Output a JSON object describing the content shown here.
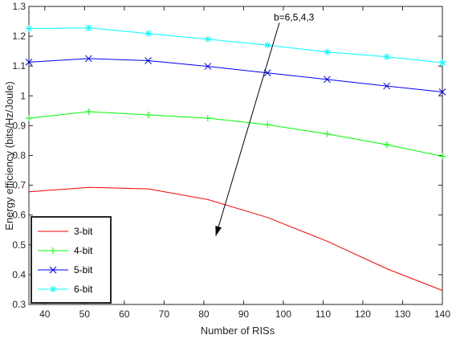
{
  "chart_data": {
    "type": "line",
    "title": "",
    "xlabel": "Number of RISs",
    "ylabel": "Energy efficiency (bits/Hz/Joule)",
    "xlim": [
      36,
      140
    ],
    "ylim": [
      0.3,
      1.3
    ],
    "xticks": [
      40,
      50,
      60,
      70,
      80,
      90,
      100,
      110,
      120,
      130,
      140
    ],
    "yticks": [
      0.3,
      0.4,
      0.5,
      0.6,
      0.7,
      0.8,
      0.9,
      1,
      1.1,
      1.2,
      1.3
    ],
    "grid": false,
    "legend_position": "bottom-left",
    "annotation": {
      "text": "b=6,5,4,3",
      "arrow_from": [
        99,
        1.245
      ],
      "arrow_to": [
        83,
        0.53
      ]
    },
    "series": [
      {
        "name": "3-bit",
        "color": "#ff0000",
        "marker": "none",
        "x": [
          36,
          51,
          66,
          81,
          96,
          111,
          126,
          140
        ],
        "y": [
          0.678,
          0.693,
          0.688,
          0.652,
          0.592,
          0.512,
          0.42,
          0.347
        ]
      },
      {
        "name": "4-bit",
        "color": "#00ff00",
        "marker": "plus",
        "x": [
          36,
          51,
          66,
          81,
          96,
          111,
          126,
          140
        ],
        "y": [
          0.925,
          0.947,
          0.936,
          0.925,
          0.903,
          0.872,
          0.836,
          0.797
        ]
      },
      {
        "name": "5-bit",
        "color": "#0000ff",
        "marker": "x",
        "x": [
          36,
          51,
          66,
          81,
          96,
          111,
          126,
          140
        ],
        "y": [
          1.113,
          1.125,
          1.118,
          1.099,
          1.077,
          1.055,
          1.033,
          1.013
        ]
      },
      {
        "name": "6-bit",
        "color": "#00ffff",
        "marker": "star",
        "x": [
          36,
          51,
          66,
          81,
          96,
          111,
          126,
          140
        ],
        "y": [
          1.226,
          1.228,
          1.209,
          1.19,
          1.17,
          1.147,
          1.131,
          1.111
        ]
      }
    ]
  }
}
